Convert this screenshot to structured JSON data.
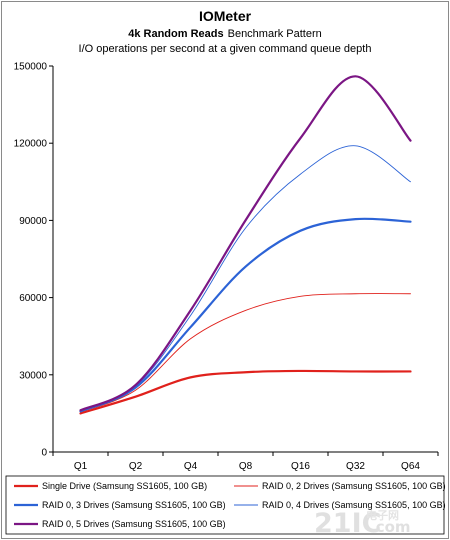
{
  "chart_data": {
    "type": "line",
    "title": "IOMeter",
    "subtitle_bold": "4k Random Reads",
    "subtitle_rest": "Benchmark Pattern",
    "subtitle2": "I/O operations per second at a given command queue depth",
    "xlabel": "",
    "ylabel": "",
    "categories": [
      "Q1",
      "Q2",
      "Q4",
      "Q8",
      "Q16",
      "Q32",
      "Q64"
    ],
    "ylim": [
      0,
      150000
    ],
    "yticks": [
      0,
      30000,
      60000,
      90000,
      120000,
      150000
    ],
    "ytick_labels": [
      "0",
      "30000",
      "60000",
      "90000",
      "120000",
      "150000"
    ],
    "grid": false,
    "legend_position": "bottom",
    "series": [
      {
        "name": "Single Drive (Samsung SS1605, 100 GB)",
        "color": "#e0211c",
        "width": 2.2,
        "values": [
          15000,
          21500,
          29000,
          31000,
          31500,
          31300,
          31300
        ]
      },
      {
        "name": "RAID 0, 2 Drives (Samsung SS1605, 100 GB)",
        "color": "#e0211c",
        "width": 0.9,
        "values": [
          15500,
          24000,
          44000,
          55000,
          60500,
          61500,
          61500
        ]
      },
      {
        "name": "RAID 0, 3 Drives (Samsung SS1605, 100 GB)",
        "color": "#2c63d6",
        "width": 2.2,
        "values": [
          15800,
          25000,
          48500,
          72000,
          86000,
          90500,
          89500
        ]
      },
      {
        "name": "RAID 0, 4 Drives (Samsung SS1605, 100 GB)",
        "color": "#2c63d6",
        "width": 0.9,
        "values": [
          16000,
          25500,
          53000,
          87000,
          108000,
          119000,
          105000
        ]
      },
      {
        "name": "RAID 0, 5 Drives (Samsung SS1605, 100 GB)",
        "color": "#7b1684",
        "width": 2.2,
        "values": [
          16200,
          26000,
          55000,
          90000,
          122000,
          146000,
          121000
        ]
      }
    ]
  },
  "watermark": {
    "brand": "21IC",
    "suffix": ".com",
    "cn": "电子网"
  }
}
